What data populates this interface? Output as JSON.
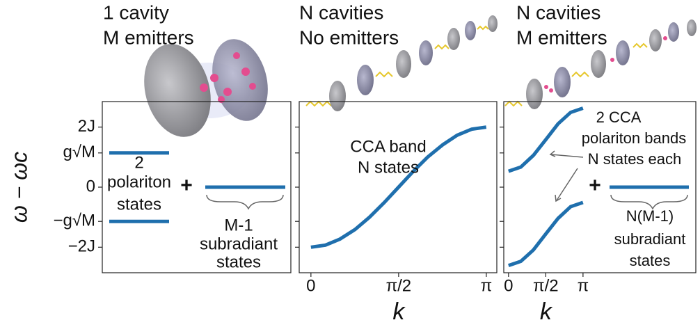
{
  "chart_data": [
    {
      "type": "level",
      "title": [
        "1 cavity",
        "M emitters"
      ],
      "ylabel": "ω − ωc",
      "ylim": [
        -2.85,
        2.85
      ],
      "yticks": [
        {
          "value": 2,
          "label": "2J"
        },
        {
          "value": 1.14,
          "label": "g√M"
        },
        0,
        {
          "value": -1.14,
          "label": "−g√M"
        },
        {
          "value": -2,
          "label": "−2J"
        }
      ],
      "values": [
        1.14,
        0,
        -1.14
      ],
      "color": "#1f6fad",
      "annotations": [
        "2",
        "polariton",
        "states",
        "+",
        "M-1",
        "subradiant",
        "states"
      ]
    },
    {
      "type": "line",
      "title": [
        "N cavities",
        "No emitters"
      ],
      "xlabel": "k",
      "xlim": [
        -0.21,
        3.33
      ],
      "xticks": [
        0,
        {
          "value": 1.571,
          "label": "π/2"
        },
        {
          "value": 3.142,
          "label": "π"
        }
      ],
      "x": [
        0,
        0.26,
        0.52,
        0.79,
        1.05,
        1.31,
        1.57,
        1.83,
        2.09,
        2.36,
        2.62,
        2.88,
        3.14
      ],
      "values": [
        -2,
        -1.93,
        -1.73,
        -1.41,
        -1,
        -0.52,
        0,
        0.52,
        1,
        1.41,
        1.73,
        1.93,
        2
      ],
      "color": "#1f6fad",
      "annotations": [
        "CCA band",
        "N states"
      ]
    },
    {
      "type": "line",
      "title": [
        "N cavities",
        "M emitters"
      ],
      "xlabel": "k",
      "xlim": [
        -0.2,
        7.9
      ],
      "xticks": [
        0,
        {
          "value": 1.571,
          "label": "π/2"
        },
        {
          "value": 3.142,
          "label": "π"
        }
      ],
      "x": [
        0,
        0.52,
        1.05,
        1.57,
        2.09,
        2.62,
        3.14
      ],
      "series": [
        {
          "color": "#1f6fad",
          "values": [
            0.53,
            0.67,
            1.06,
            1.58,
            2.11,
            2.49,
            2.63
          ]
        },
        {
          "color": "#1f6fad",
          "values": [
            -2.61,
            -2.47,
            -2.09,
            -1.56,
            -1.04,
            -0.65,
            -0.51
          ]
        }
      ],
      "level": 0,
      "annotations": [
        "2 CCA",
        "polariton bands",
        "N states each",
        "+",
        "N(M-1)",
        "subradiant",
        "states"
      ]
    }
  ]
}
